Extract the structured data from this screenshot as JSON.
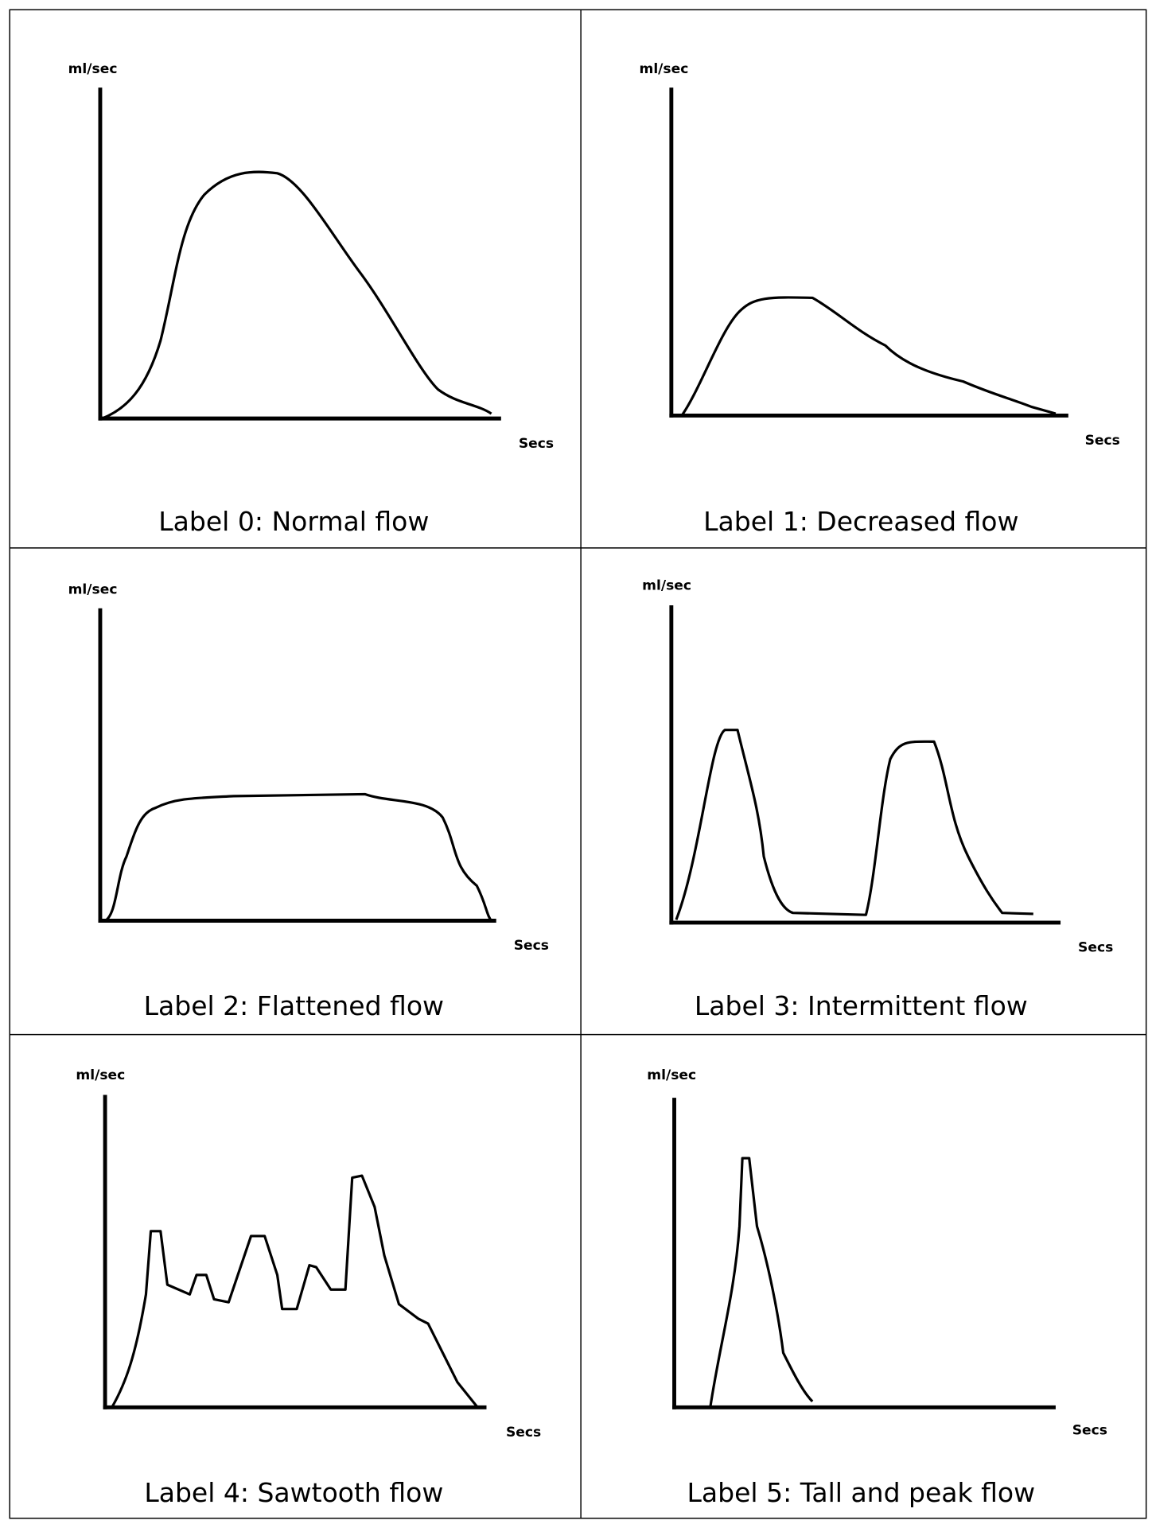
{
  "panels": [
    {
      "y_label": "ml/sec",
      "x_label": "Secs",
      "caption": "Label 0: Normal flow"
    },
    {
      "y_label": "ml/sec",
      "x_label": "Secs",
      "caption": "Label 1: Decreased flow"
    },
    {
      "y_label": "ml/sec",
      "x_label": "Secs",
      "caption": "Label 2: Flattened flow"
    },
    {
      "y_label": "ml/sec",
      "x_label": "Secs",
      "caption": "Label 3: Intermittent flow"
    },
    {
      "y_label": "ml/sec",
      "x_label": "Secs",
      "caption": "Label 4: Sawtooth flow"
    },
    {
      "y_label": "ml/sec",
      "x_label": "Secs",
      "caption": "Label 5: Tall and peak flow"
    }
  ]
}
